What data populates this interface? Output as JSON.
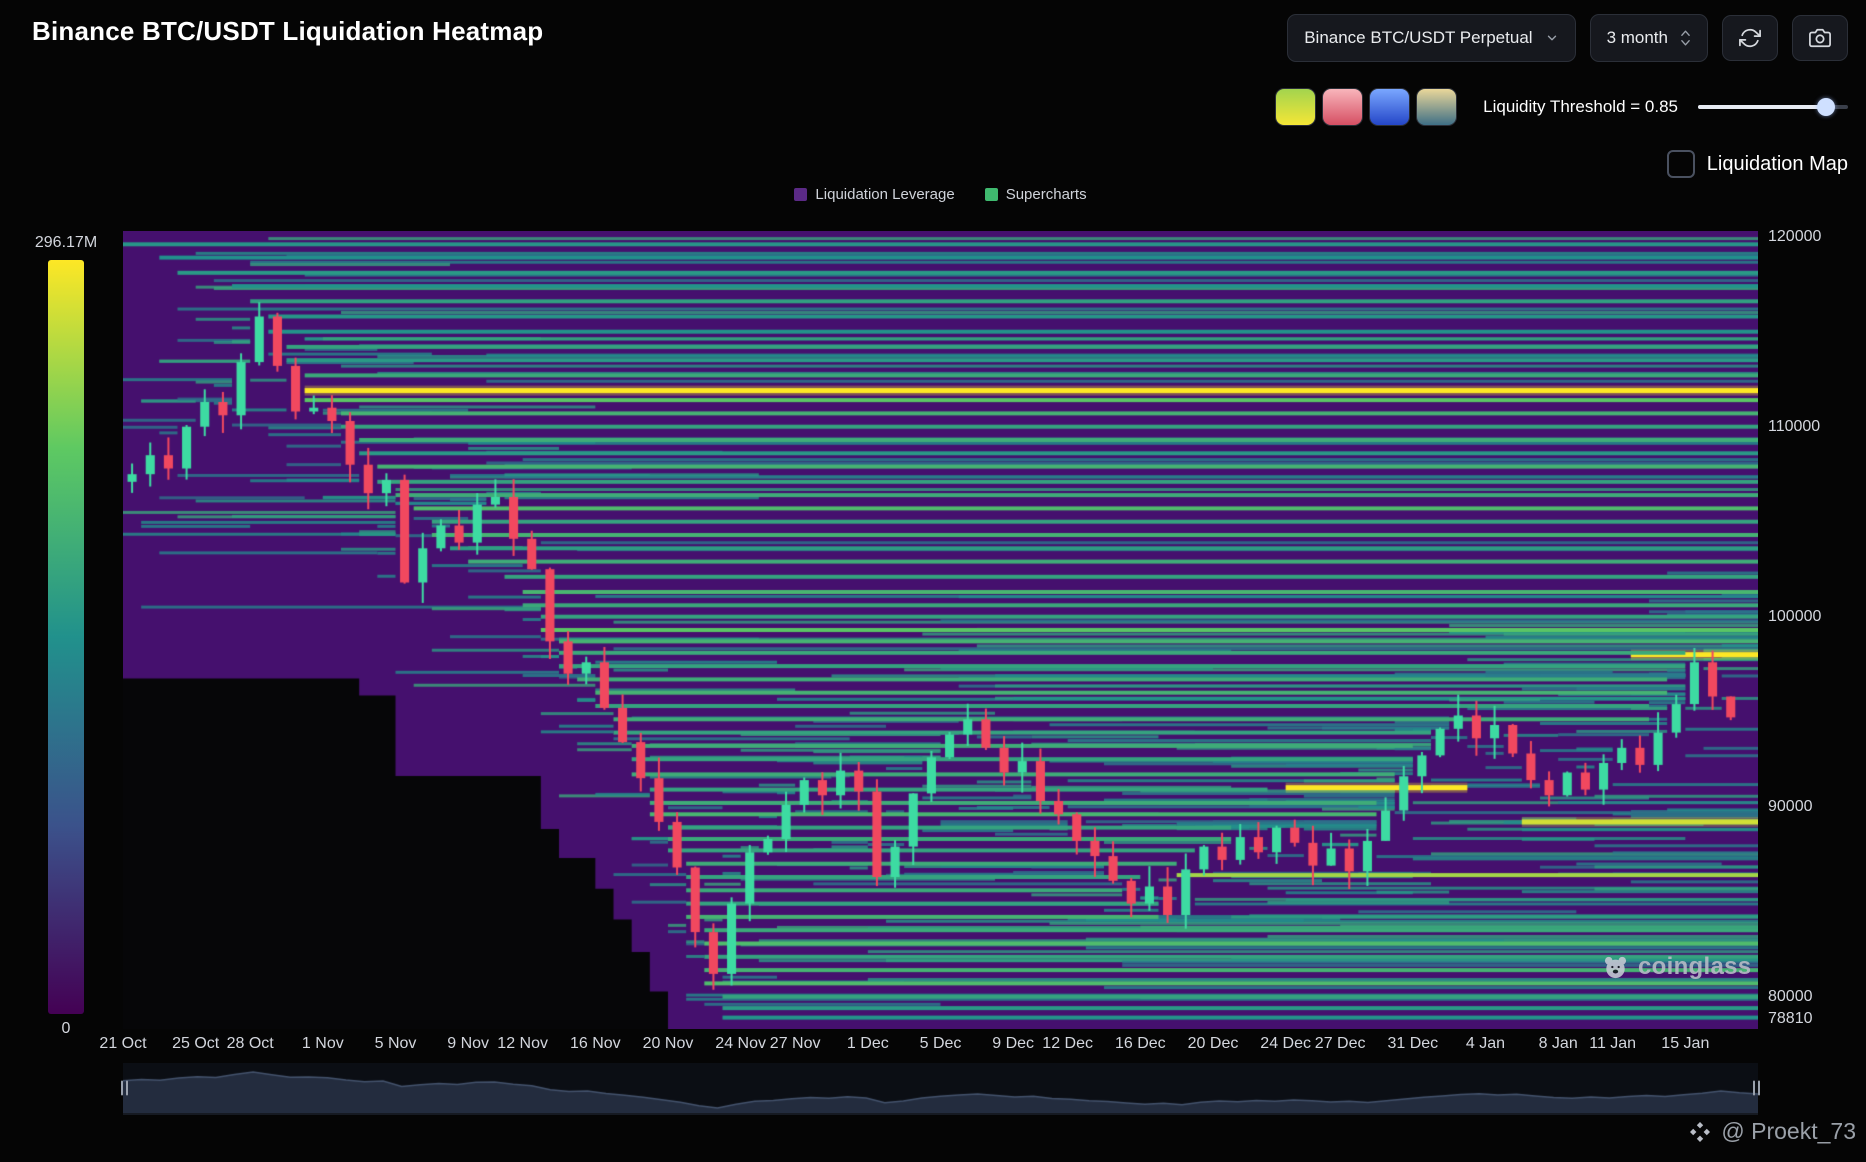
{
  "header": {
    "title": "Binance BTC/USDT Liquidation Heatmap",
    "symbol_select": "Binance BTC/USDT Perpetual",
    "timeframe_select": "3 month"
  },
  "toolbar": {
    "threshold_label": "Liquidity Threshold = 0.85",
    "threshold_value": 0.85,
    "liquidation_map_label": "Liquidation Map",
    "palettes": [
      [
        "#a3d44e",
        "#f5e636"
      ],
      [
        "#f8b5bb",
        "#d64f63"
      ],
      [
        "#7aa7ff",
        "#2446c8"
      ],
      [
        "#ead79a",
        "#3f6f86"
      ]
    ]
  },
  "icons": {
    "symbol_dropdown": "chevron-down",
    "timeframe_spinner": "chevron-up-down",
    "refresh": "circular-arrows",
    "screenshot": "camera",
    "coinglass": "bear",
    "credit": "four-diamonds"
  },
  "legend": [
    {
      "label": "Liquidation Leverage",
      "color": "#5b2a86"
    },
    {
      "label": "Supercharts",
      "color": "#3fba6f"
    }
  ],
  "colorbar": {
    "max_label": "296.17M",
    "min_label": "0"
  },
  "watermarks": {
    "chart": "coinglass",
    "credit": "@ Proekt_73"
  },
  "chart_data": {
    "type": "heatmap",
    "title": "Binance BTC/USDT Liquidation Heatmap",
    "xlabel": "",
    "ylabel": "",
    "y_domain": [
      78300,
      120300
    ],
    "days": 90,
    "texture_seed": 7,
    "candle_seed": 11,
    "y_ticks": [
      {
        "value": 120000,
        "label": "120000"
      },
      {
        "value": 110000,
        "label": "110000"
      },
      {
        "value": 100000,
        "label": "100000"
      },
      {
        "value": 90000,
        "label": "90000"
      },
      {
        "value": 80000,
        "label": "80000"
      },
      {
        "value": 78810,
        "label": "78810"
      }
    ],
    "x_ticks": [
      {
        "label": "21 Oct",
        "day": 0
      },
      {
        "label": "25 Oct",
        "day": 4
      },
      {
        "label": "28 Oct",
        "day": 7
      },
      {
        "label": "1 Nov",
        "day": 11
      },
      {
        "label": "5 Nov",
        "day": 15
      },
      {
        "label": "9 Nov",
        "day": 19
      },
      {
        "label": "12 Nov",
        "day": 22
      },
      {
        "label": "16 Nov",
        "day": 26
      },
      {
        "label": "20 Nov",
        "day": 30
      },
      {
        "label": "24 Nov",
        "day": 34
      },
      {
        "label": "27 Nov",
        "day": 37
      },
      {
        "label": "1 Dec",
        "day": 41
      },
      {
        "label": "5 Dec",
        "day": 45
      },
      {
        "label": "9 Dec",
        "day": 49
      },
      {
        "label": "12 Dec",
        "day": 52
      },
      {
        "label": "16 Dec",
        "day": 56
      },
      {
        "label": "20 Dec",
        "day": 60
      },
      {
        "label": "24 Dec",
        "day": 64
      },
      {
        "label": "27 Dec",
        "day": 67
      },
      {
        "label": "31 Dec",
        "day": 71
      },
      {
        "label": "4 Jan",
        "day": 75
      },
      {
        "label": "8 Jan",
        "day": 79
      },
      {
        "label": "11 Jan",
        "day": 82
      },
      {
        "label": "15 Jan",
        "day": 86
      }
    ],
    "price": [
      107500,
      108500,
      107800,
      110000,
      111300,
      110600,
      113400,
      115800,
      113200,
      110800,
      111000,
      110300,
      108000,
      106500,
      107200,
      101800,
      103600,
      104800,
      103900,
      105900,
      106300,
      104100,
      102500,
      98700,
      97000,
      97600,
      95200,
      93400,
      91500,
      89200,
      86800,
      83400,
      81200,
      84900,
      87600,
      88300,
      90100,
      91400,
      90600,
      91900,
      90800,
      86300,
      87900,
      90700,
      92600,
      93800,
      94600,
      93100,
      91800,
      92400,
      90300,
      89600,
      88200,
      87400,
      86100,
      84900,
      85800,
      84300,
      86700,
      87900,
      87200,
      88400,
      87600,
      88900,
      88100,
      86900,
      87800,
      86600,
      88200,
      89800,
      91600,
      92700,
      94100,
      94800,
      93600,
      94300,
      92800,
      91400,
      90600,
      91800,
      90900,
      92300,
      93100,
      92200,
      93900,
      95400,
      97600,
      95800,
      94700
    ],
    "bands": [
      [
        119600,
        0,
        null,
        0.32
      ],
      [
        118900,
        2,
        null,
        0.28
      ],
      [
        118100,
        3,
        null,
        0.34
      ],
      [
        117400,
        6,
        null,
        0.3
      ],
      [
        116600,
        7,
        null,
        0.38
      ],
      [
        115800,
        8,
        null,
        0.32
      ],
      [
        115000,
        8,
        null,
        0.3
      ],
      [
        114200,
        9,
        null,
        0.4
      ],
      [
        113500,
        9,
        null,
        0.34
      ],
      [
        112700,
        10,
        null,
        0.44
      ],
      [
        111900,
        10,
        null,
        1.0
      ],
      [
        111400,
        10,
        null,
        0.62
      ],
      [
        110700,
        12,
        null,
        0.5
      ],
      [
        110000,
        12,
        null,
        0.4
      ],
      [
        109300,
        13,
        null,
        0.46
      ],
      [
        108600,
        13,
        null,
        0.34
      ],
      [
        107900,
        14,
        null,
        0.5
      ],
      [
        107100,
        14,
        null,
        0.4
      ],
      [
        106400,
        15,
        null,
        0.46
      ],
      [
        105700,
        16,
        null,
        0.56
      ],
      [
        105000,
        17,
        null,
        0.4
      ],
      [
        104300,
        17,
        null,
        0.5
      ],
      [
        103600,
        18,
        null,
        0.36
      ],
      [
        102900,
        19,
        null,
        0.46
      ],
      [
        102100,
        21,
        null,
        0.4
      ],
      [
        101300,
        22,
        null,
        0.52
      ],
      [
        100600,
        22,
        null,
        0.44
      ],
      [
        100000,
        23,
        null,
        0.4
      ],
      [
        99300,
        23,
        null,
        0.62
      ],
      [
        98700,
        24,
        null,
        0.5
      ],
      [
        98000,
        83,
        null,
        1.0
      ],
      [
        98100,
        24,
        86,
        0.44
      ],
      [
        97400,
        24,
        86,
        0.4
      ],
      [
        96700,
        25,
        85,
        0.46
      ],
      [
        96000,
        26,
        85,
        0.5
      ],
      [
        95300,
        26,
        84,
        0.4
      ],
      [
        94600,
        27,
        84,
        0.46
      ],
      [
        93900,
        27,
        72,
        0.4
      ],
      [
        93200,
        28,
        71,
        0.46
      ],
      [
        92500,
        28,
        71,
        0.4
      ],
      [
        91700,
        28,
        70,
        0.46
      ],
      [
        91000,
        64,
        74,
        1.0
      ],
      [
        90900,
        29,
        63,
        0.4
      ],
      [
        90200,
        29,
        69,
        0.46
      ],
      [
        89600,
        29,
        69,
        0.52
      ],
      [
        89200,
        77,
        null,
        0.9
      ],
      [
        88900,
        30,
        61,
        0.4
      ],
      [
        88300,
        30,
        61,
        0.44
      ],
      [
        87700,
        30,
        59,
        0.4
      ],
      [
        87000,
        31,
        58,
        0.46
      ],
      [
        86400,
        58,
        null,
        0.8
      ],
      [
        86300,
        31,
        56,
        0.4
      ],
      [
        85600,
        31,
        55,
        0.44
      ],
      [
        84900,
        31,
        57,
        0.4
      ],
      [
        84200,
        31,
        57,
        0.5
      ],
      [
        83500,
        32,
        null,
        0.44
      ],
      [
        82800,
        32,
        null,
        0.56
      ],
      [
        82100,
        32,
        null,
        0.4
      ],
      [
        81400,
        32,
        null,
        0.5
      ],
      [
        80700,
        32,
        null,
        0.56
      ],
      [
        80000,
        33,
        null,
        0.4
      ],
      [
        79400,
        33,
        null,
        0.34
      ],
      [
        78900,
        33,
        null,
        0.3
      ]
    ],
    "colors": {
      "heat_bg": "#45106e",
      "up": "#3ddba2",
      "down": "#f1485f",
      "viridis_stops": [
        "#440154",
        "#3b528b",
        "#21918c",
        "#5ec962",
        "#fde725"
      ],
      "nav_fill": "#232c3e",
      "nav_line": "#44536d"
    }
  }
}
